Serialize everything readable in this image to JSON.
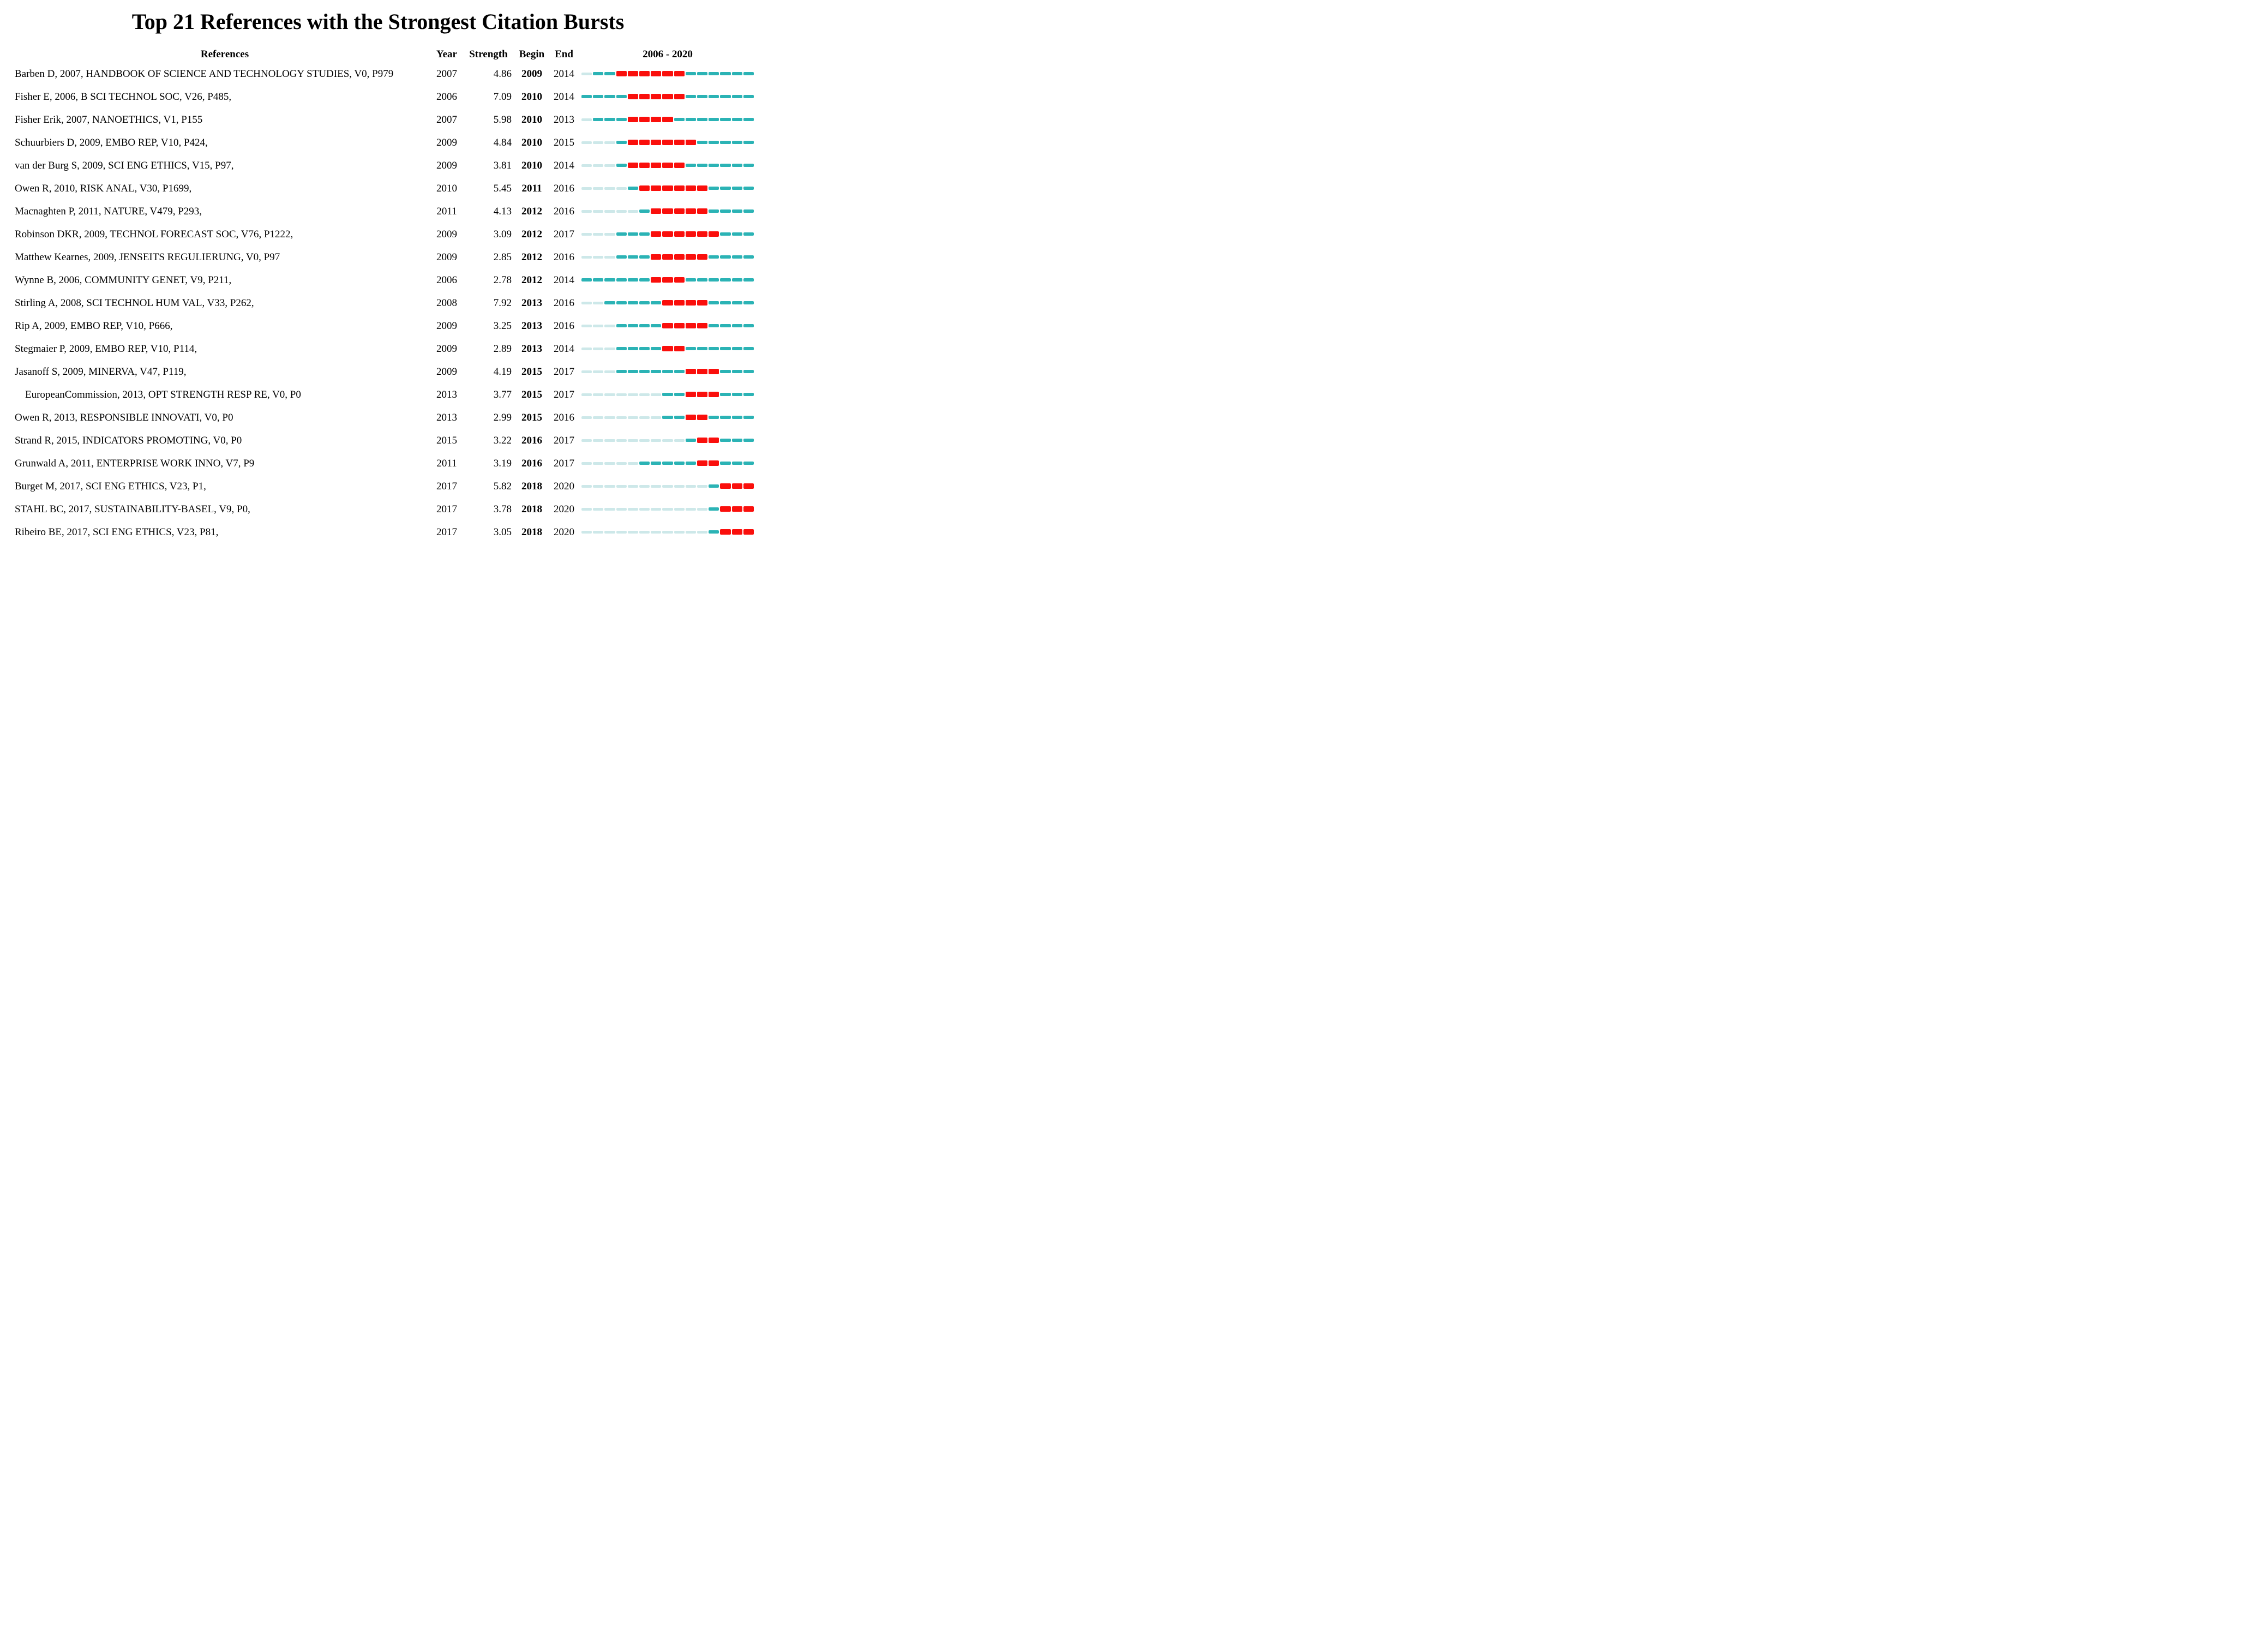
{
  "title": "Top 21 References with the Strongest Citation Bursts",
  "columns": {
    "references": "References",
    "year": "Year",
    "strength": "Strength",
    "begin": "Begin",
    "end": "End",
    "period": "2006 - 2020"
  },
  "chart_data": {
    "type": "table",
    "title": "Top 21 References with the Strongest Citation Bursts",
    "timeline": {
      "start": 2006,
      "end": 2020
    },
    "colors": {
      "burst": "#fa0f0c",
      "active": "#2bb3b5",
      "pre_publication": "#cde8e9"
    },
    "legend": {
      "burst": "burst period (red)",
      "active": "published, no burst (teal)",
      "pre_publication": "before publication year (pale)"
    },
    "rows": [
      {
        "reference": "Barben D, 2007, HANDBOOK OF SCIENCE AND TECHNOLOGY STUDIES, V0, P979",
        "year": 2007,
        "strength": "4.86",
        "begin": 2009,
        "end": 2014
      },
      {
        "reference": "Fisher E, 2006, B SCI TECHNOL SOC, V26, P485,",
        "year": 2006,
        "strength": "7.09",
        "begin": 2010,
        "end": 2014
      },
      {
        "reference": "Fisher Erik, 2007, NANOETHICS, V1, P155",
        "year": 2007,
        "strength": "5.98",
        "begin": 2010,
        "end": 2013
      },
      {
        "reference": "Schuurbiers D, 2009, EMBO REP, V10, P424,",
        "year": 2009,
        "strength": "4.84",
        "begin": 2010,
        "end": 2015
      },
      {
        "reference": "van der Burg S, 2009, SCI ENG ETHICS, V15, P97,",
        "year": 2009,
        "strength": "3.81",
        "begin": 2010,
        "end": 2014
      },
      {
        "reference": "Owen R, 2010, RISK ANAL, V30, P1699,",
        "year": 2010,
        "strength": "5.45",
        "begin": 2011,
        "end": 2016
      },
      {
        "reference": "Macnaghten P, 2011, NATURE, V479, P293,",
        "year": 2011,
        "strength": "4.13",
        "begin": 2012,
        "end": 2016
      },
      {
        "reference": "Robinson DKR, 2009, TECHNOL FORECAST SOC, V76, P1222,",
        "year": 2009,
        "strength": "3.09",
        "begin": 2012,
        "end": 2017
      },
      {
        "reference": "Matthew Kearnes, 2009, JENSEITS REGULIERUNG, V0, P97",
        "year": 2009,
        "strength": "2.85",
        "begin": 2012,
        "end": 2016
      },
      {
        "reference": "Wynne B, 2006, COMMUNITY GENET, V9, P211,",
        "year": 2006,
        "strength": "2.78",
        "begin": 2012,
        "end": 2014
      },
      {
        "reference": "Stirling A, 2008, SCI TECHNOL HUM VAL, V33, P262,",
        "year": 2008,
        "strength": "7.92",
        "begin": 2013,
        "end": 2016
      },
      {
        "reference": "Rip A, 2009, EMBO REP, V10, P666,",
        "year": 2009,
        "strength": "3.25",
        "begin": 2013,
        "end": 2016
      },
      {
        "reference": "Stegmaier P, 2009, EMBO REP, V10, P114,",
        "year": 2009,
        "strength": "2.89",
        "begin": 2013,
        "end": 2014
      },
      {
        "reference": "Jasanoff S, 2009, MINERVA, V47, P119,",
        "year": 2009,
        "strength": "4.19",
        "begin": 2015,
        "end": 2017
      },
      {
        "reference": "    EuropeanCommission, 2013, OPT STRENGTH RESP RE, V0, P0",
        "year": 2013,
        "strength": "3.77",
        "begin": 2015,
        "end": 2017
      },
      {
        "reference": "Owen R, 2013, RESPONSIBLE INNOVATI, V0, P0",
        "year": 2013,
        "strength": "2.99",
        "begin": 2015,
        "end": 2016
      },
      {
        "reference": "Strand R, 2015, INDICATORS PROMOTING, V0, P0",
        "year": 2015,
        "strength": "3.22",
        "begin": 2016,
        "end": 2017
      },
      {
        "reference": "Grunwald A, 2011, ENTERPRISE WORK INNO, V7, P9",
        "year": 2011,
        "strength": "3.19",
        "begin": 2016,
        "end": 2017
      },
      {
        "reference": "Burget M, 2017, SCI ENG ETHICS, V23, P1,",
        "year": 2017,
        "strength": "5.82",
        "begin": 2018,
        "end": 2020
      },
      {
        "reference": "STAHL BC, 2017, SUSTAINABILITY-BASEL, V9, P0,",
        "year": 2017,
        "strength": "3.78",
        "begin": 2018,
        "end": 2020
      },
      {
        "reference": "Ribeiro BE, 2017, SCI ENG ETHICS, V23, P81,",
        "year": 2017,
        "strength": "3.05",
        "begin": 2018,
        "end": 2020
      }
    ]
  }
}
